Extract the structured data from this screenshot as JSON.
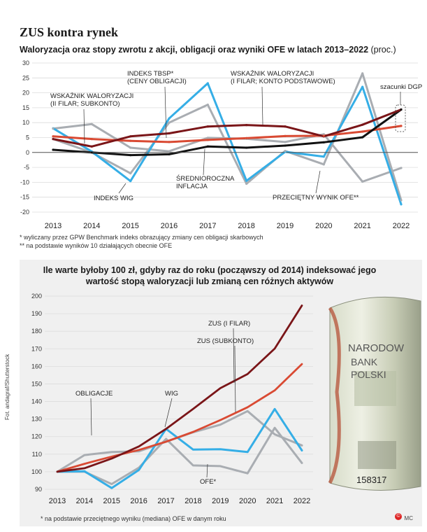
{
  "header": {
    "title": "ZUS kontra rynek",
    "subtitle1": "Waloryzacja oraz stopy zwrotu z akcji, obligacji oraz wyniki OFE w latach 2013–2022",
    "subtitle1_unit": "(proc.)",
    "subtitle2": "Ile warte byłoby 100 zł, gdyby raz do roku (począwszy od 2014) indeksować jego wartość stopą waloryzacji lub zmianą cen różnych aktywów"
  },
  "footnotes": {
    "f1": "* wyliczany przez GPW Benchmark indeks obrazujący zmiany cen obligacji skarbowych",
    "f2": "** na podstawie wyników 10 działających obecnie OFE",
    "f3": "* na podstawie przeciętnego wyniku (mediana) OFE w danym roku",
    "photo": "Fot. andagraf/Shutterstock",
    "credit": "MC",
    "logo": "©"
  },
  "colors": {
    "wig": "#35aee6",
    "bonds": "#a9adb2",
    "ofe": "#a9adb2",
    "zus_filar": "#7a1518",
    "zus_sub": "#d94a33",
    "inflation": "#111111",
    "bg_panel": "#f0f0f0"
  },
  "chart_data": [
    {
      "type": "line",
      "title": "Waloryzacja oraz stopy zwrotu z akcji, obligacji oraz wyniki OFE w latach 2013–2022 (proc.)",
      "categories": [
        "2013",
        "2014",
        "2015",
        "2016",
        "2017",
        "2018",
        "2019",
        "2020",
        "2021",
        "2022"
      ],
      "ylim": [
        -20,
        30
      ],
      "yticks": [
        -20,
        -15,
        -10,
        -5,
        0,
        5,
        10,
        15,
        20,
        25,
        30
      ],
      "grid": true,
      "series": [
        {
          "name": "INDEKS WIG",
          "key": "wig",
          "values": [
            8.1,
            0.3,
            -9.6,
            11.4,
            23.2,
            -9.5,
            0.2,
            -1.4,
            22.0,
            -17.4
          ]
        },
        {
          "name": "INDEKS TBSP* (CENY OBLIGACJI)",
          "key": "bonds",
          "values": [
            8,
            9.5,
            1.6,
            0.4,
            4.9,
            4.6,
            3.5,
            6.1,
            -9.8,
            -5.2
          ]
        },
        {
          "name": "PRZECIĘTNY WYNIK OFE**",
          "key": "ofe",
          "values": [
            4.5,
            0.0,
            -7.0,
            10.0,
            16.0,
            -10.5,
            0.5,
            -4.0,
            26.5,
            -16.0
          ]
        },
        {
          "name": "WSKAŹNIK WALORYZACJI (I FILAR; KONTO PODSTAWOWE)",
          "key": "zus_filar",
          "values": [
            4.5,
            2.0,
            5.4,
            6.4,
            8.7,
            9.2,
            8.7,
            5.4,
            9.3,
            14.4
          ]
        },
        {
          "name": "WSKAŹNIK WALORYZACJI (II FILAR; SUBKONTO)",
          "key": "zus_sub",
          "values": [
            5.4,
            4.5,
            3.9,
            3.5,
            4.2,
            4.8,
            5.5,
            5.6,
            7.0,
            8.9
          ]
        },
        {
          "name": "ŚREDNIOROCZNA INFLACJA",
          "key": "inflation",
          "values": [
            0.9,
            0.0,
            -0.9,
            -0.6,
            2.0,
            1.6,
            2.3,
            3.4,
            5.1,
            14.4
          ]
        }
      ],
      "annotations": {
        "bonds_label_1": "INDEKS TBSP*",
        "bonds_label_2": "(CENY OBLIGACJI)",
        "filar_label_1": "WSKAŹNIK WALORYZACJI",
        "filar_label_2": "(I FILAR; KONTO PODSTAWOWE)",
        "sub_label_1": "WSKAŹNIK WALORYZACJI",
        "sub_label_2": "(II FILAR; SUBKONTO)",
        "wig_label": "INDEKS WIG",
        "infl_label_1": "ŚREDNIOROCZNA",
        "infl_label_2": "INFLACJA",
        "ofe_label": "PRZECIĘTNY WYNIK OFE**",
        "dgp_label": "szacunki DGP"
      }
    },
    {
      "type": "line",
      "title": "Ile warte byłoby 100 zł, gdyby raz do roku (począwszy od 2014) indeksować jego wartość stopą waloryzacji lub zmianą cen różnych aktywów",
      "categories": [
        "2013",
        "2014",
        "2015",
        "2016",
        "2017",
        "2018",
        "2019",
        "2020",
        "2021",
        "2022"
      ],
      "ylim": [
        90,
        200
      ],
      "yticks": [
        90,
        100,
        110,
        120,
        130,
        140,
        150,
        160,
        170,
        180,
        190,
        200
      ],
      "grid": true,
      "series": [
        {
          "name": "ZUS (I FILAR)",
          "key": "zus_filar",
          "values": [
            100,
            102,
            107.5,
            114.4,
            124.4,
            135.8,
            147.6,
            155.6,
            170.1,
            194.6
          ]
        },
        {
          "name": "ZUS (SUBKONTO)",
          "key": "zus_sub",
          "values": [
            100,
            104.5,
            108.6,
            112.4,
            117.1,
            122.7,
            129.4,
            136.7,
            146.3,
            161.3
          ]
        },
        {
          "name": "OBLIGACJE",
          "key": "bonds",
          "values": [
            100,
            109.5,
            111.2,
            111.6,
            117.1,
            122.5,
            126.8,
            134.5,
            121.3,
            115.0
          ]
        },
        {
          "name": "WIG",
          "key": "wig",
          "values": [
            100,
            100.3,
            90.7,
            101.0,
            124.4,
            112.6,
            112.8,
            111.2,
            135.7,
            112.1
          ]
        },
        {
          "name": "OFE*",
          "key": "ofe",
          "values": [
            100,
            100,
            93,
            102.3,
            118.7,
            103.6,
            103.2,
            99.1,
            125.0,
            105.0
          ]
        }
      ],
      "annotations": {
        "filar_label": "ZUS (I FILAR)",
        "sub_label": "ZUS (SUBKONTO)",
        "bonds_label": "OBLIGACJE",
        "wig_label": "WIG",
        "ofe_label": "OFE*"
      }
    }
  ]
}
